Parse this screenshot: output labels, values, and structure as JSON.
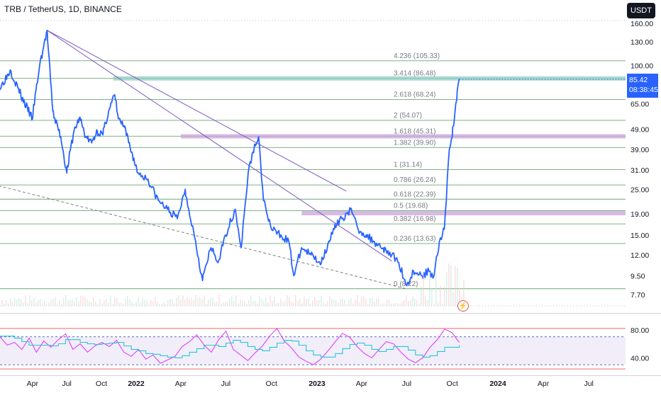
{
  "header": {
    "symbol_title": "TRB / TetherUS, 1D, BINANCE",
    "currency_button": "USDT"
  },
  "price_tag": {
    "price": "85.42",
    "countdown": "08:38:45"
  },
  "event_icon": "lightning-icon",
  "colors": {
    "price_line": "#2962ff",
    "fib_line": "#6aa874",
    "trendline": "#7e57c2",
    "zone_teal": "#8fcfc4",
    "zone_purple": "#c9a3d9",
    "rsi_magenta": "#e040fb",
    "rsi_cyan": "#26c6da",
    "rsi_band_fill": "#ede7f6",
    "rsi_red": "#ef5350",
    "rsi_blue_dash": "#5c6bc0"
  },
  "chart_data": [
    {
      "type": "line",
      "title": "TRB / TetherUS, 1D, BINANCE",
      "y_scale": "log",
      "y_ticks": [
        "160.00",
        "130.00",
        "100.00",
        "65.00",
        "49.00",
        "39.00",
        "31.00",
        "25.00",
        "19.00",
        "15.00",
        "12.00",
        "9.50",
        "7.70"
      ],
      "x_ticks": [
        "Apr",
        "Jul",
        "Oct",
        "2022",
        "Apr",
        "Jul",
        "Oct",
        "2023",
        "Apr",
        "Jul",
        "Oct",
        "2024",
        "Apr",
        "Jul"
      ],
      "last_price": 85.42,
      "fib_levels": [
        {
          "label": "4.236 (105.33)",
          "value": 105.33
        },
        {
          "label": "3.414 (86.48)",
          "value": 86.48
        },
        {
          "label": "2.618 (68.24)",
          "value": 68.24
        },
        {
          "label": "2 (54.07)",
          "value": 54.07
        },
        {
          "label": "1.618 (45.31)",
          "value": 45.31
        },
        {
          "label": "1.382 (39.90)",
          "value": 39.9
        },
        {
          "label": "1 (31.14)",
          "value": 31.14
        },
        {
          "label": "0.786 (26.24)",
          "value": 26.24
        },
        {
          "label": "0.618 (22.39)",
          "value": 22.39
        },
        {
          "label": "0.5 (19.68)",
          "value": 19.68
        },
        {
          "label": "0.382 (16.98)",
          "value": 16.98
        },
        {
          "label": "0.236 (13.63)",
          "value": 13.63
        },
        {
          "label": "0 (8.22)",
          "value": 8.22
        }
      ],
      "zones": [
        {
          "from": "2021-11",
          "to": "2024-01",
          "low": 84.5,
          "high": 88.5,
          "color": "teal"
        },
        {
          "from": "2022-04",
          "to": "2024-01",
          "low": 44.3,
          "high": 46.3,
          "color": "purple"
        },
        {
          "from": "2022-12",
          "to": "2024-01",
          "low": 18.8,
          "high": 19.6,
          "color": "purple"
        }
      ],
      "trendlines": [
        {
          "from": [
            "2021-05-10",
            148
          ],
          "to": [
            "2023-03-01",
            24.5
          ],
          "style": "solid"
        },
        {
          "from": [
            "2021-05-10",
            148
          ],
          "to": [
            "2023-06-01",
            11.2
          ],
          "style": "solid"
        },
        {
          "from": [
            "2021-01-01",
            26
          ],
          "to": [
            "2023-07-01",
            8.2
          ],
          "style": "dashed"
        }
      ],
      "series": [
        {
          "x": [
            "2021-01-01",
            "2021-02-01",
            "2021-03-01",
            "2021-04-01",
            "2021-04-20",
            "2021-05-10",
            "2021-05-25",
            "2021-06-15",
            "2021-07-01",
            "2021-07-20",
            "2021-08-05",
            "2021-08-20",
            "2021-09-05",
            "2021-09-20",
            "2021-10-05",
            "2021-10-20",
            "2021-11-05",
            "2021-11-15",
            "2021-12-01",
            "2021-12-20",
            "2022-01-05",
            "2022-01-25",
            "2022-02-15",
            "2022-03-05",
            "2022-03-25",
            "2022-04-10",
            "2022-05-01",
            "2022-05-15",
            "2022-06-01",
            "2022-06-15",
            "2022-07-01",
            "2022-07-20",
            "2022-08-01",
            "2022-08-15",
            "2022-08-25",
            "2022-09-05",
            "2022-09-15",
            "2022-10-01",
            "2022-10-20",
            "2022-11-05",
            "2022-11-15",
            "2022-12-01",
            "2022-12-20",
            "2023-01-10",
            "2023-01-25",
            "2023-02-05",
            "2023-02-20",
            "2023-03-10",
            "2023-03-25",
            "2023-04-10",
            "2023-04-25",
            "2023-05-15",
            "2023-06-01",
            "2023-06-15",
            "2023-07-01",
            "2023-07-15",
            "2023-08-01",
            "2023-08-15",
            "2023-08-25",
            "2023-09-05",
            "2023-09-15",
            "2023-09-25",
            "2023-10-01",
            "2023-10-10",
            "2023-10-15"
          ],
          "values": [
            75,
            95,
            72,
            55,
            100,
            148,
            60,
            45,
            30,
            48,
            56,
            45,
            42,
            48,
            46,
            60,
            72,
            55,
            50,
            38,
            30,
            28,
            22,
            20,
            18,
            25,
            14,
            9,
            13,
            11,
            15,
            20,
            13,
            30,
            38,
            45,
            22,
            16,
            15,
            14,
            9.5,
            13,
            12,
            11,
            14,
            16,
            18,
            20,
            16,
            15,
            14,
            13,
            12,
            11,
            8.5,
            10,
            9.5,
            10,
            9.5,
            14,
            16,
            39,
            45,
            68,
            86
          ]
        }
      ]
    },
    {
      "type": "line",
      "title": "",
      "y_ticks": [
        "80.00",
        "40.00"
      ],
      "ylim": [
        20,
        100
      ],
      "reference_lines": [
        {
          "value": 70,
          "style": "dashed"
        },
        {
          "value": 30,
          "style": "dashed"
        }
      ],
      "series": [
        {
          "color": "magenta",
          "values": [
            70,
            58,
            62,
            52,
            68,
            48,
            64,
            55,
            66,
            74,
            52,
            60,
            48,
            57,
            62,
            56,
            65,
            48,
            42,
            52,
            38,
            44,
            32,
            37,
            42,
            56,
            63,
            73,
            58,
            48,
            66,
            78,
            52,
            44,
            36,
            47,
            57,
            71,
            82,
            64,
            54,
            41,
            35,
            30,
            38,
            50,
            63,
            75,
            69,
            56,
            46,
            40,
            52,
            63,
            60,
            48,
            38,
            33,
            40,
            55,
            66,
            81,
            76,
            62
          ]
        },
        {
          "color": "cyan",
          "values": [
            71,
            71,
            68,
            63,
            58,
            58,
            58,
            57,
            60,
            66,
            66,
            62,
            60,
            59,
            60,
            61,
            62,
            57,
            52,
            50,
            46,
            45,
            43,
            41,
            40,
            43,
            48,
            53,
            58,
            58,
            56,
            61,
            65,
            62,
            56,
            52,
            50,
            55,
            61,
            65,
            64,
            58,
            50,
            44,
            41,
            41,
            46,
            53,
            59,
            61,
            58,
            52,
            49,
            52,
            56,
            56,
            51,
            44,
            41,
            43,
            49,
            55,
            55,
            58
          ]
        }
      ]
    }
  ]
}
